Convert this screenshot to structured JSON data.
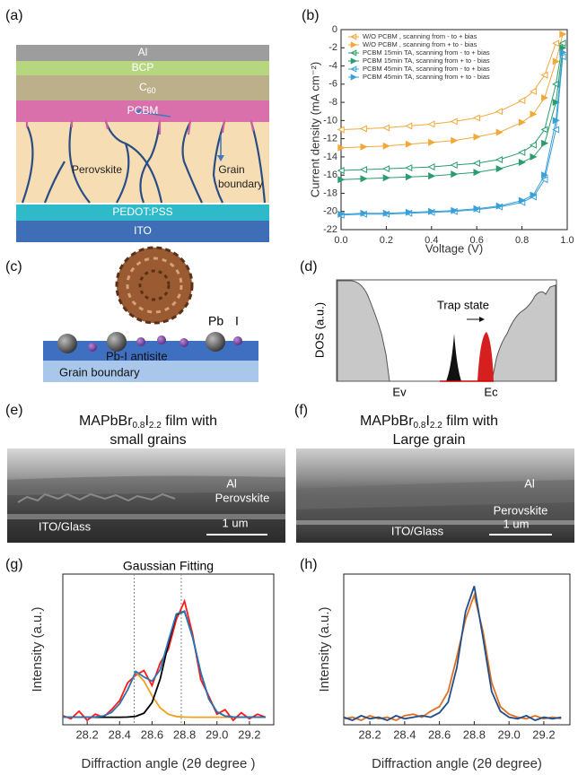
{
  "panel_labels": [
    "(a)",
    "(b)",
    "(c)",
    "(d)",
    "(e)",
    "(f)",
    "(g)",
    "(h)"
  ],
  "panel_a": {
    "layers": [
      "Al",
      "BCP",
      "C",
      "PCBM",
      "PEDOT:PSS",
      "ITO"
    ],
    "c_sub": "60",
    "perovskite": "Perovskite",
    "grain": "Grain",
    "boundary": "boundary"
  },
  "panel_c": {
    "pb": "Pb",
    "i": "I",
    "antisite": "Pb-I antisite",
    "grain_boundary": "Grain boundary"
  },
  "panel_d": {
    "ylabel": "DOS (a.u.)",
    "trap": "Trap state",
    "ev": "Ev",
    "ec": "Ec"
  },
  "panel_e": {
    "title_parts": [
      "MAPbBr",
      "0.8",
      "I",
      "2.2",
      " film with"
    ],
    "title_line2": "small grains",
    "al": "Al",
    "perovskite": "Perovskite",
    "substrate": "ITO/Glass",
    "scale": "1 um"
  },
  "panel_f": {
    "title_parts": [
      "MAPbBr",
      "0.8",
      "I",
      "2.2",
      " film with"
    ],
    "title_line2": "Large  grain",
    "al": "Al",
    "perovskite": "Perovskite",
    "substrate": "ITO/Glass",
    "scale": "1 um"
  },
  "chart_data": [
    {
      "type": "line",
      "xlabel": "Voltage (V)",
      "ylabel": "Current density (mA cm⁻²)",
      "x": [
        0,
        0.1,
        0.2,
        0.3,
        0.4,
        0.5,
        0.6,
        0.7,
        0.8,
        0.85,
        0.9,
        0.95,
        0.98
      ],
      "xlim": [
        0,
        1.0
      ],
      "ylim": [
        -22,
        0
      ],
      "xticks": [
        {
          "value": 0,
          "label": "0.0"
        },
        0.2,
        0.4,
        0.6,
        0.8,
        {
          "value": 1.0,
          "label": "1.0"
        }
      ],
      "yticks": [
        0,
        -2,
        -4,
        -6,
        -8,
        -10,
        -12,
        -14,
        -16,
        -18,
        -20,
        -22
      ],
      "legend": "upper left",
      "series": [
        {
          "name": "W/O PCBM , scanning from - to + bias",
          "color": "#f2a93b",
          "marker": "open-left",
          "values": [
            -11,
            -10.9,
            -10.8,
            -10.6,
            -10.4,
            -10.1,
            -9.7,
            -9.0,
            -7.8,
            -6.8,
            -5.0,
            -1.5,
            null
          ]
        },
        {
          "name": "W/O PCBM , scanning from + to - bias",
          "color": "#f2a93b",
          "marker": "filled-right",
          "values": [
            -13,
            -12.9,
            -12.8,
            -12.6,
            -12.4,
            -12.2,
            -11.8,
            -11.3,
            -10.2,
            -9.3,
            -7.5,
            -3.5,
            -0.5
          ]
        },
        {
          "name": "PCBM 15min TA, scanning from - to + bias",
          "color": "#2a9d6e",
          "marker": "open-left",
          "values": [
            -15.5,
            -15.4,
            -15.3,
            -15.2,
            -15.1,
            -14.9,
            -14.7,
            -14.3,
            -13.5,
            -12.7,
            -11,
            -6,
            -1.5
          ]
        },
        {
          "name": "PCBM 15min TA, scanning from + to - bias",
          "color": "#2a9d6e",
          "marker": "filled-right",
          "values": [
            -16.5,
            -16.4,
            -16.3,
            -16.2,
            -16.1,
            -15.9,
            -15.7,
            -15.3,
            -14.6,
            -14,
            -12.5,
            -8,
            -2
          ]
        },
        {
          "name": "PCBM 45min TA, scanning from - to + bias",
          "color": "#3aa0d8",
          "marker": "open-left",
          "values": [
            -20.4,
            -20.3,
            -20.3,
            -20.2,
            -20.1,
            -20,
            -19.8,
            -19.5,
            -19,
            -18.4,
            -16.5,
            -11,
            -3
          ]
        },
        {
          "name": "PCBM 45min TA, scanning from + to - bias",
          "color": "#3aa0d8",
          "marker": "filled-right",
          "values": [
            -20.3,
            -20.2,
            -20.2,
            -20.1,
            -20,
            -19.9,
            -19.7,
            -19.4,
            -18.8,
            -18.2,
            -16,
            -10,
            -2.5
          ]
        }
      ]
    },
    {
      "type": "line",
      "title": "Gaussian Fitting",
      "xlabel": "Diffraction angle (2θ degree )",
      "ylabel": "Intensity (a.u.)",
      "x": [
        28.05,
        28.1,
        28.15,
        28.2,
        28.25,
        28.3,
        28.35,
        28.4,
        28.45,
        28.5,
        28.55,
        28.6,
        28.65,
        28.7,
        28.75,
        28.8,
        28.85,
        28.9,
        28.95,
        29.0,
        29.05,
        29.1,
        29.15,
        29.2,
        29.25,
        29.3
      ],
      "xlim": [
        28.05,
        29.35
      ],
      "ylim": [
        0,
        1
      ],
      "xticks": [
        28.2,
        28.4,
        28.6,
        28.8,
        {
          "value": 29.0,
          "label": "29.0"
        },
        29.2
      ],
      "vlines": [
        28.49,
        28.78
      ],
      "series": [
        {
          "color": "#ff1a1a",
          "values": [
            0.06,
            0.04,
            0.09,
            0.03,
            0.07,
            0.05,
            0.1,
            0.16,
            0.28,
            0.33,
            0.36,
            0.26,
            0.41,
            0.5,
            0.7,
            0.82,
            0.6,
            0.3,
            0.19,
            0.07,
            0.1,
            0.03,
            0.08,
            0.04,
            0.07,
            0.05
          ]
        },
        {
          "color": "#f0a020",
          "values": [
            0.05,
            0.05,
            0.05,
            0.05,
            0.052,
            0.059,
            0.082,
            0.139,
            0.232,
            0.348,
            0.29,
            0.192,
            0.112,
            0.07,
            0.055,
            0.051,
            0.05,
            0.05,
            0.05,
            0.05,
            0.05,
            0.05,
            0.05,
            0.05,
            0.05,
            0.05
          ]
        },
        {
          "color": "#000000",
          "values": [
            0.05,
            0.05,
            0.05,
            0.05,
            0.05,
            0.05,
            0.05,
            0.05,
            0.051,
            0.056,
            0.077,
            0.147,
            0.304,
            0.535,
            0.731,
            0.753,
            0.582,
            0.346,
            0.171,
            0.086,
            0.058,
            0.051,
            0.05,
            0.05,
            0.05,
            0.05
          ]
        },
        {
          "color": "#2e75b6",
          "values": [
            0.05,
            0.05,
            0.05,
            0.05,
            0.052,
            0.059,
            0.082,
            0.139,
            0.233,
            0.354,
            0.317,
            0.289,
            0.366,
            0.555,
            0.736,
            0.754,
            0.582,
            0.346,
            0.171,
            0.086,
            0.058,
            0.051,
            0.05,
            0.05,
            0.05,
            0.05
          ]
        }
      ]
    },
    {
      "type": "line",
      "xlabel": "Diffraction angle (2θ degree)",
      "ylabel": "Intensity (a.u.)",
      "x": [
        28.05,
        28.1,
        28.15,
        28.2,
        28.25,
        28.3,
        28.35,
        28.4,
        28.45,
        28.5,
        28.55,
        28.6,
        28.65,
        28.7,
        28.75,
        28.8,
        28.85,
        28.9,
        28.95,
        29.0,
        29.05,
        29.1,
        29.15,
        29.2,
        29.25,
        29.3
      ],
      "xlim": [
        28.05,
        29.35
      ],
      "ylim": [
        0,
        1
      ],
      "xticks": [
        28.2,
        28.4,
        28.6,
        28.8,
        {
          "value": 29.0,
          "label": "29.0"
        },
        29.2
      ],
      "series": [
        {
          "color": "#e07020",
          "values": [
            0.04,
            0.05,
            0.03,
            0.06,
            0.04,
            0.05,
            0.03,
            0.06,
            0.07,
            0.05,
            0.09,
            0.12,
            0.22,
            0.45,
            0.7,
            0.86,
            0.62,
            0.28,
            0.12,
            0.07,
            0.05,
            0.04,
            0.06,
            0.04,
            0.05,
            0.04
          ]
        },
        {
          "color": "#1f4e8c",
          "values": [
            0.05,
            0.03,
            0.06,
            0.04,
            0.05,
            0.03,
            0.06,
            0.04,
            0.05,
            0.06,
            0.05,
            0.08,
            0.15,
            0.38,
            0.75,
            0.92,
            0.58,
            0.22,
            0.09,
            0.05,
            0.04,
            0.06,
            0.03,
            0.05,
            0.04,
            0.05
          ]
        }
      ]
    }
  ]
}
